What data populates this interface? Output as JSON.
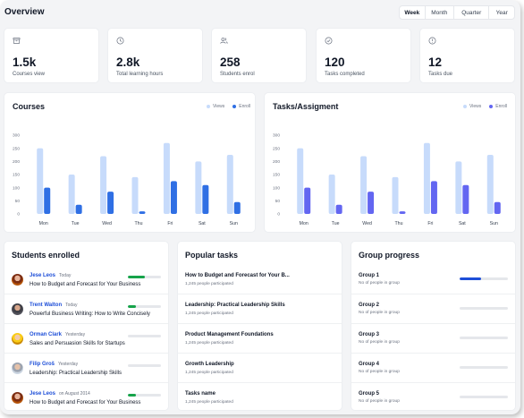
{
  "header": {
    "title": "Overview",
    "ranges": [
      "Week",
      "Month",
      "Quarter",
      "Year"
    ],
    "active_range": "Week"
  },
  "stats": [
    {
      "icon": "archive-icon",
      "value": "1.5k",
      "label": "Courses view"
    },
    {
      "icon": "clock-icon",
      "value": "2.8k",
      "label": "Total learning hours"
    },
    {
      "icon": "users-icon",
      "value": "258",
      "label": "Students enrol"
    },
    {
      "icon": "check-circle-icon",
      "value": "120",
      "label": "Tasks completed"
    },
    {
      "icon": "info-circle-icon",
      "value": "12",
      "label": "Tasks due"
    }
  ],
  "colors": {
    "views": "#c7dbfb",
    "courses_enroll": "#2f6fe4",
    "tasks_enroll": "#6366f1",
    "progress_green": "#16a34a",
    "progress_blue": "#1d4ed8"
  },
  "chart_data": [
    {
      "type": "bar",
      "title": "Courses",
      "categories": [
        "Mon",
        "Tue",
        "Wed",
        "Thu",
        "Fri",
        "Sat",
        "Sun"
      ],
      "series": [
        {
          "name": "Views",
          "values": [
            250,
            150,
            220,
            140,
            270,
            200,
            225
          ]
        },
        {
          "name": "Enroll",
          "values": [
            100,
            35,
            85,
            10,
            125,
            110,
            45
          ]
        }
      ],
      "yticks": [
        0,
        50,
        100,
        150,
        200,
        250,
        300
      ],
      "ylim": [
        0,
        300
      ],
      "legend": "top-right"
    },
    {
      "type": "bar",
      "title": "Tasks/Assigment",
      "categories": [
        "Mon",
        "Tue",
        "Wed",
        "Thu",
        "Fri",
        "Sat",
        "Sun"
      ],
      "series": [
        {
          "name": "Views",
          "values": [
            250,
            150,
            220,
            140,
            270,
            200,
            225
          ]
        },
        {
          "name": "Enroll",
          "values": [
            100,
            35,
            85,
            10,
            125,
            110,
            45
          ]
        }
      ],
      "yticks": [
        0,
        50,
        100,
        150,
        200,
        250,
        300
      ],
      "ylim": [
        0,
        300
      ],
      "legend": "top-right"
    }
  ],
  "students": {
    "title": "Students enrolled",
    "rows": [
      {
        "name": "Jese Leos",
        "meta": "Today",
        "course": "How to Budget and Forecast for Your Business",
        "progress": 0.5
      },
      {
        "name": "Trent Walton",
        "meta": "Today",
        "course": "Powerful Business Writing: How to Write Concisely",
        "progress": 0.25
      },
      {
        "name": "Orman Clark",
        "meta": "Yesterday",
        "course": "Sales and Persuasion Skills for Startups",
        "progress": 0
      },
      {
        "name": "Filip Groš",
        "meta": "Yesterday",
        "course": "Leadership: Practical Leadership Skills",
        "progress": 0
      },
      {
        "name": "Jese Leos",
        "meta": "on August 2014",
        "course": "How to Budget and Forecast for Your Business",
        "progress": 0.25
      }
    ]
  },
  "popular_tasks": {
    "title": "Popular tasks",
    "rows": [
      {
        "name": "How to Budget and Forecast for Your B...",
        "sub": "1,245 people participated"
      },
      {
        "name": "Leadership: Practical Leadership Skills",
        "sub": "1,245 people participated"
      },
      {
        "name": "Product Management Foundations",
        "sub": "1,245 people participated"
      },
      {
        "name": "Growth Leadership",
        "sub": "1,245 people participated"
      },
      {
        "name": "Tasks name",
        "sub": "1,245 people participated"
      }
    ]
  },
  "group_progress": {
    "title": "Group progress",
    "rows": [
      {
        "name": "Group 1",
        "sub": "No of people in group",
        "progress": 0.45
      },
      {
        "name": "Group 2",
        "sub": "No of people in group",
        "progress": 0
      },
      {
        "name": "Group 3",
        "sub": "No of people in group",
        "progress": 0
      },
      {
        "name": "Group 4",
        "sub": "No of people in group",
        "progress": 0
      },
      {
        "name": "Group 5",
        "sub": "No of people in group",
        "progress": 0
      }
    ]
  }
}
